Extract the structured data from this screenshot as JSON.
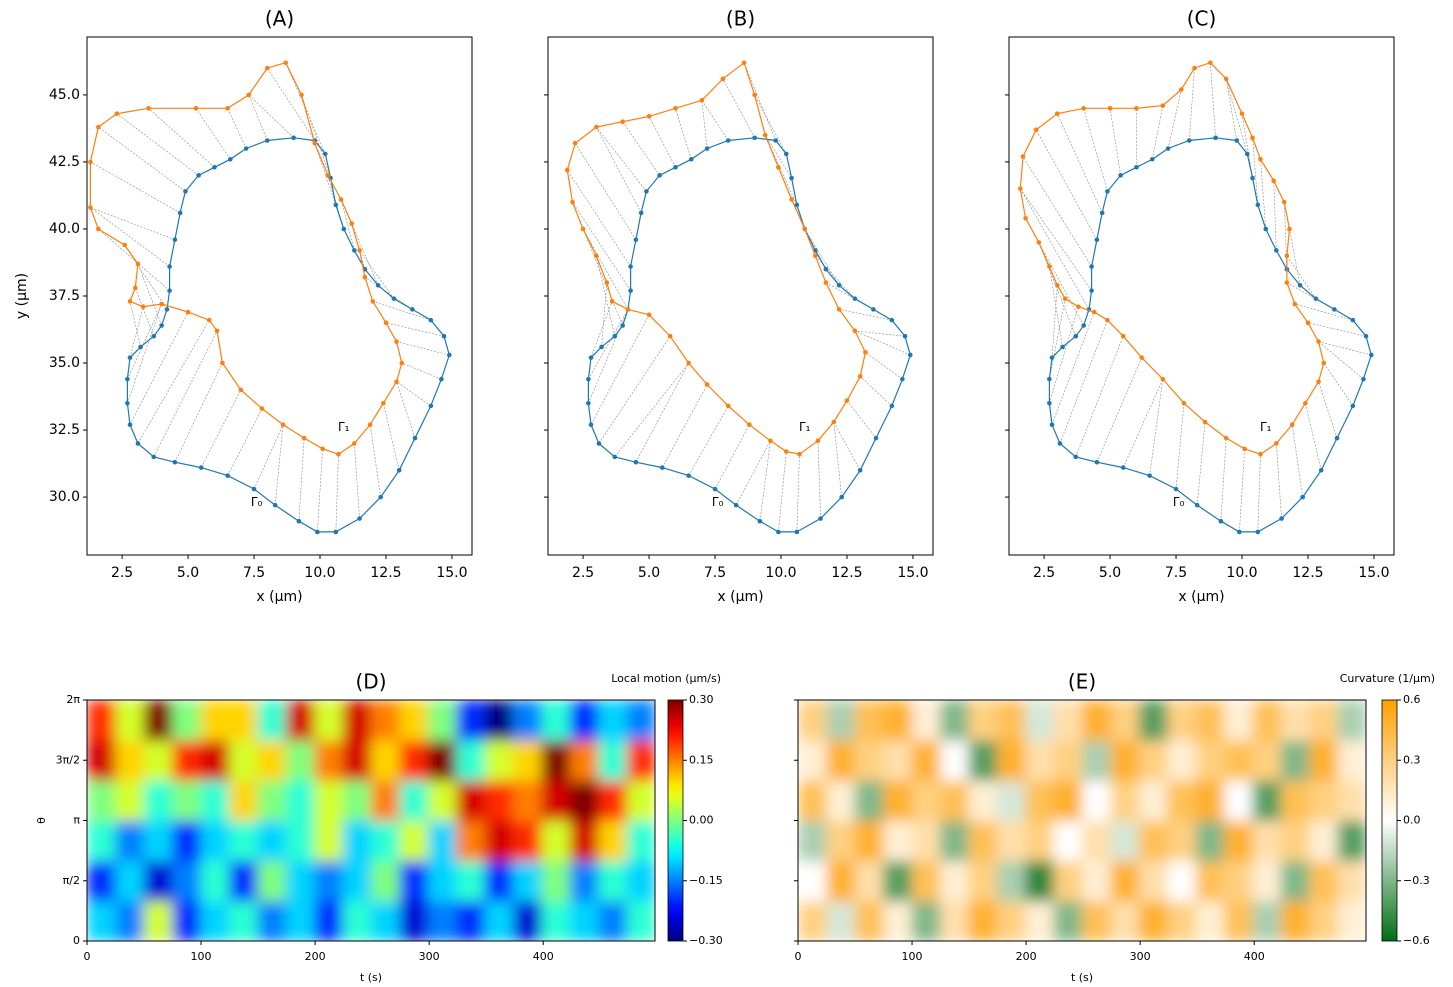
{
  "chart_data": [
    {
      "type": "line",
      "title": "(A)",
      "x_label": "x (μm)",
      "y_label": "y (μm)",
      "xlim": [
        1.17,
        15.76
      ],
      "ylim": [
        27.84,
        47.16
      ],
      "xticks": [
        {
          "value": 2.5,
          "label": "2.5"
        },
        {
          "value": 5,
          "label": "5.0"
        },
        {
          "value": 7.5,
          "label": "7.5"
        },
        {
          "value": 10,
          "label": "10.0"
        },
        {
          "value": 12.5,
          "label": "12.5"
        },
        {
          "value": 15,
          "label": "15.0"
        }
      ],
      "yticks": [
        {
          "value": 30,
          "label": "30.0"
        },
        32.5,
        {
          "value": 35,
          "label": "35.0"
        },
        37.5,
        {
          "value": 40,
          "label": "40.0"
        },
        42.5,
        {
          "value": 45,
          "label": "45.0"
        }
      ],
      "series": [
        {
          "name": "Γ₀",
          "color": "#1f77b4",
          "label_at": [
            7.6,
            29.8
          ],
          "x": [
            10.6,
            11.5,
            12.3,
            13.0,
            13.6,
            14.2,
            14.6,
            14.9,
            14.7,
            14.2,
            13.5,
            12.8,
            12.2,
            11.7,
            11.3,
            10.9,
            10.6,
            10.4,
            10.2,
            9.8,
            9.0,
            8.0,
            7.2,
            6.6,
            6.0,
            5.4,
            4.9,
            4.7,
            4.5,
            4.3,
            4.3,
            4.2,
            4.0,
            3.7,
            3.2,
            2.8,
            2.7,
            2.7,
            2.8,
            3.1,
            3.7,
            4.5,
            5.5,
            6.5,
            7.5,
            8.3,
            9.2,
            9.9
          ],
          "y": [
            28.7,
            29.2,
            30.0,
            31.0,
            32.2,
            33.4,
            34.4,
            35.3,
            36.0,
            36.6,
            37.0,
            37.4,
            37.9,
            38.5,
            39.2,
            40.0,
            40.9,
            41.9,
            42.8,
            43.3,
            43.4,
            43.3,
            43.0,
            42.6,
            42.3,
            42.0,
            41.4,
            40.6,
            39.6,
            38.6,
            37.7,
            37.0,
            36.4,
            36.0,
            35.6,
            35.2,
            34.4,
            33.5,
            32.7,
            32.0,
            31.5,
            31.3,
            31.1,
            30.8,
            30.3,
            29.7,
            29.1,
            28.7
          ]
        },
        {
          "name": "Γ₁",
          "color": "#ff7f0e",
          "label_at": [
            10.9,
            32.6
          ],
          "x": [
            10.7,
            11.3,
            11.9,
            12.4,
            12.9,
            13.1,
            12.9,
            12.5,
            12.0,
            11.7,
            11.5,
            11.2,
            10.8,
            10.3,
            9.8,
            9.3,
            8.7,
            8.0,
            7.3,
            6.5,
            5.3,
            3.5,
            2.3,
            1.6,
            1.3,
            1.3,
            1.6,
            2.6,
            3.1,
            3.0,
            2.8,
            3.3,
            4.0,
            5.0,
            5.8,
            6.1,
            6.3,
            7.0,
            7.8,
            8.6,
            9.4,
            10.1
          ],
          "y": [
            31.6,
            32.0,
            32.7,
            33.5,
            34.3,
            35.0,
            35.8,
            36.5,
            37.3,
            38.2,
            39.2,
            40.2,
            41.1,
            42.0,
            43.2,
            45.0,
            46.2,
            46.0,
            45.0,
            44.5,
            44.5,
            44.5,
            44.3,
            43.8,
            42.5,
            40.8,
            40.0,
            39.4,
            38.7,
            37.8,
            37.3,
            37.1,
            37.2,
            36.9,
            36.6,
            36.2,
            35.0,
            34.0,
            33.3,
            32.7,
            32.2,
            31.8
          ]
        }
      ]
    },
    {
      "type": "line",
      "title": "(B)",
      "x_label": "x (μm)",
      "ytick_labels": false,
      "xlim": [
        1.17,
        15.76
      ],
      "ylim": [
        27.84,
        47.16
      ],
      "xticks": [
        {
          "value": 2.5,
          "label": "2.5"
        },
        {
          "value": 5,
          "label": "5.0"
        },
        {
          "value": 7.5,
          "label": "7.5"
        },
        {
          "value": 10,
          "label": "10.0"
        },
        {
          "value": 12.5,
          "label": "12.5"
        },
        {
          "value": 15,
          "label": "15.0"
        }
      ],
      "yticks": [
        30,
        32.5,
        35,
        37.5,
        40,
        42.5,
        45
      ],
      "series": [
        {
          "name": "Γ₀",
          "color": "#1f77b4",
          "label_at": [
            7.6,
            29.8
          ],
          "x": [
            10.6,
            11.5,
            12.3,
            13.0,
            13.6,
            14.2,
            14.6,
            14.9,
            14.7,
            14.2,
            13.5,
            12.8,
            12.2,
            11.7,
            11.3,
            10.9,
            10.6,
            10.4,
            10.2,
            9.8,
            9.0,
            8.0,
            7.2,
            6.6,
            6.0,
            5.4,
            4.9,
            4.7,
            4.5,
            4.3,
            4.3,
            4.2,
            4.0,
            3.7,
            3.2,
            2.8,
            2.7,
            2.7,
            2.8,
            3.1,
            3.7,
            4.5,
            5.5,
            6.5,
            7.5,
            8.3,
            9.2,
            9.9
          ],
          "y": [
            28.7,
            29.2,
            30.0,
            31.0,
            32.2,
            33.4,
            34.4,
            35.3,
            36.0,
            36.6,
            37.0,
            37.4,
            37.9,
            38.5,
            39.2,
            40.0,
            40.9,
            41.9,
            42.8,
            43.3,
            43.4,
            43.3,
            43.0,
            42.6,
            42.3,
            42.0,
            41.4,
            40.6,
            39.6,
            38.6,
            37.7,
            37.0,
            36.4,
            36.0,
            35.6,
            35.2,
            34.4,
            33.5,
            32.7,
            32.0,
            31.5,
            31.3,
            31.1,
            30.8,
            30.3,
            29.7,
            29.1,
            28.7
          ]
        },
        {
          "name": "Γ₁",
          "color": "#ff7f0e",
          "label_at": [
            10.9,
            32.6
          ],
          "x": [
            10.7,
            11.4,
            12.0,
            12.5,
            13.0,
            13.2,
            12.8,
            12.2,
            11.7,
            11.3,
            10.9,
            10.4,
            9.9,
            9.4,
            9.0,
            8.6,
            7.8,
            7.0,
            6.0,
            5.0,
            4.0,
            3.0,
            2.2,
            1.9,
            2.1,
            2.5,
            3.0,
            3.4,
            3.6,
            4.2,
            5.0,
            5.8,
            6.5,
            7.2,
            8.0,
            8.8,
            9.6,
            10.2
          ],
          "y": [
            31.6,
            32.1,
            32.8,
            33.6,
            34.5,
            35.4,
            36.2,
            37.0,
            38.0,
            39.0,
            40.0,
            41.1,
            42.3,
            43.5,
            45.0,
            46.2,
            45.6,
            44.8,
            44.5,
            44.2,
            44.0,
            43.8,
            43.2,
            42.2,
            41.0,
            40.0,
            39.0,
            38.0,
            37.3,
            37.0,
            36.8,
            36.0,
            35.0,
            34.2,
            33.4,
            32.7,
            32.1,
            31.7
          ]
        }
      ]
    },
    {
      "type": "line",
      "title": "(C)",
      "x_label": "x (μm)",
      "ytick_labels": false,
      "xlim": [
        1.17,
        15.76
      ],
      "ylim": [
        27.84,
        47.16
      ],
      "xticks": [
        {
          "value": 2.5,
          "label": "2.5"
        },
        {
          "value": 5,
          "label": "5.0"
        },
        {
          "value": 7.5,
          "label": "7.5"
        },
        {
          "value": 10,
          "label": "10.0"
        },
        {
          "value": 12.5,
          "label": "12.5"
        },
        {
          "value": 15,
          "label": "15.0"
        }
      ],
      "yticks": [
        30,
        32.5,
        35,
        37.5,
        40,
        42.5,
        45
      ],
      "series": [
        {
          "name": "Γ₀",
          "color": "#1f77b4",
          "label_at": [
            7.6,
            29.8
          ],
          "x": [
            10.6,
            11.5,
            12.3,
            13.0,
            13.6,
            14.2,
            14.6,
            14.9,
            14.7,
            14.2,
            13.5,
            12.8,
            12.2,
            11.7,
            11.3,
            10.9,
            10.6,
            10.4,
            10.2,
            9.8,
            9.0,
            8.0,
            7.2,
            6.6,
            6.0,
            5.4,
            4.9,
            4.7,
            4.5,
            4.3,
            4.3,
            4.2,
            4.0,
            3.7,
            3.2,
            2.8,
            2.7,
            2.7,
            2.8,
            3.1,
            3.7,
            4.5,
            5.5,
            6.5,
            7.5,
            8.3,
            9.2,
            9.9
          ],
          "y": [
            28.7,
            29.2,
            30.0,
            31.0,
            32.2,
            33.4,
            34.4,
            35.3,
            36.0,
            36.6,
            37.0,
            37.4,
            37.9,
            38.5,
            39.2,
            40.0,
            40.9,
            41.9,
            42.8,
            43.3,
            43.4,
            43.3,
            43.0,
            42.6,
            42.3,
            42.0,
            41.4,
            40.6,
            39.6,
            38.6,
            37.7,
            37.0,
            36.4,
            36.0,
            35.6,
            35.2,
            34.4,
            33.5,
            32.7,
            32.0,
            31.5,
            31.3,
            31.1,
            30.8,
            30.3,
            29.7,
            29.1,
            28.7
          ]
        },
        {
          "name": "Γ₁",
          "color": "#ff7f0e",
          "label_at": [
            10.9,
            32.6
          ],
          "x": [
            10.7,
            11.3,
            11.9,
            12.4,
            12.9,
            13.1,
            12.9,
            12.5,
            12.0,
            11.7,
            11.7,
            11.8,
            11.6,
            11.2,
            10.7,
            10.4,
            10.0,
            9.4,
            8.8,
            8.2,
            7.7,
            7.0,
            6.0,
            5.0,
            4.0,
            3.0,
            2.2,
            1.7,
            1.6,
            1.8,
            2.3,
            2.7,
            3.0,
            3.3,
            3.8,
            4.4,
            4.9,
            5.5,
            6.2,
            7.0,
            7.8,
            8.6,
            9.4,
            10.1
          ],
          "y": [
            31.6,
            32.0,
            32.7,
            33.5,
            34.3,
            35.0,
            35.8,
            36.5,
            37.2,
            38.0,
            39.0,
            40.0,
            41.0,
            41.8,
            42.6,
            43.4,
            44.3,
            45.6,
            46.2,
            46.0,
            45.2,
            44.6,
            44.5,
            44.5,
            44.5,
            44.3,
            43.7,
            42.7,
            41.5,
            40.4,
            39.5,
            38.6,
            37.9,
            37.4,
            37.1,
            36.9,
            36.6,
            36.0,
            35.2,
            34.4,
            33.5,
            32.8,
            32.2,
            31.8
          ]
        }
      ]
    },
    {
      "type": "heatmap",
      "title": "(D)",
      "x_label": "t (s)",
      "y_label": "θ",
      "colormap": "jet",
      "xlim": [
        0,
        498
      ],
      "ylim": [
        0,
        6.2832
      ],
      "xticks": [
        0,
        100,
        200,
        300,
        400
      ],
      "yticks": [
        0,
        {
          "value": 1.5708,
          "label": "π/2"
        },
        {
          "value": 3.1416,
          "label": "π"
        },
        {
          "value": 4.7124,
          "label": "3π/2"
        },
        {
          "value": 6.2832,
          "label": "2π"
        }
      ],
      "z": [
        [
          -0.1,
          -0.15,
          0.05,
          -0.2,
          -0.1,
          -0.05,
          -0.15,
          -0.1,
          -0.2,
          -0.05,
          -0.1,
          -0.25,
          -0.15,
          -0.2,
          -0.1,
          -0.25,
          -0.05,
          -0.1,
          -0.15,
          -0.05
        ],
        [
          -0.2,
          -0.1,
          -0.25,
          -0.15,
          -0.05,
          -0.2,
          0.0,
          -0.1,
          -0.15,
          -0.1,
          0.0,
          -0.2,
          -0.1,
          -0.05,
          -0.2,
          -0.1,
          0.0,
          -0.15,
          -0.05,
          -0.1
        ],
        [
          -0.05,
          -0.15,
          -0.1,
          -0.2,
          -0.1,
          -0.05,
          -0.1,
          -0.05,
          0.05,
          -0.1,
          -0.05,
          0.05,
          -0.1,
          0.15,
          0.25,
          0.2,
          0.05,
          0.25,
          0.1,
          -0.05
        ],
        [
          0.0,
          0.05,
          -0.05,
          0.0,
          -0.05,
          0.1,
          0.0,
          -0.05,
          0.05,
          0.0,
          0.15,
          -0.05,
          0.05,
          0.25,
          0.2,
          0.15,
          0.25,
          0.3,
          0.2,
          0.05
        ],
        [
          0.25,
          0.1,
          0.05,
          0.2,
          0.25,
          0.05,
          0.1,
          0.0,
          0.15,
          0.25,
          0.1,
          0.2,
          0.3,
          -0.05,
          0.05,
          0.1,
          0.3,
          0.15,
          -0.05,
          0.2
        ],
        [
          0.2,
          0.05,
          0.3,
          0.0,
          0.1,
          0.1,
          -0.05,
          0.25,
          0.05,
          0.25,
          0.15,
          0.1,
          0.0,
          -0.2,
          -0.3,
          -0.15,
          -0.05,
          -0.2,
          -0.1,
          -0.15
        ]
      ],
      "colorbar": {
        "label": "Local motion (μm/s)",
        "lim": [
          -0.3,
          0.3
        ],
        "ticks": [
          {
            "value": 0.3,
            "label": "0.30"
          },
          {
            "value": 0.15,
            "label": "0.15"
          },
          {
            "value": 0,
            "label": "0.00"
          },
          {
            "value": -0.15,
            "label": "−0.15"
          },
          {
            "value": -0.3,
            "label": "−0.30"
          }
        ]
      }
    },
    {
      "type": "heatmap",
      "title": "(E)",
      "x_label": "t (s)",
      "ytick_labels": false,
      "colormap": "green-orange",
      "xlim": [
        0,
        498
      ],
      "ylim": [
        0,
        6.2832
      ],
      "xticks": [
        0,
        100,
        200,
        300,
        400
      ],
      "yticks": [
        0,
        1.5708,
        3.1416,
        4.7124,
        6.2832
      ],
      "z": [
        [
          0.3,
          -0.1,
          0.4,
          0.1,
          -0.3,
          0.2,
          0.5,
          0.3,
          0.1,
          -0.3,
          0.4,
          0.2,
          0.5,
          0.3,
          0.1,
          0.4,
          -0.2,
          0.5,
          0.3,
          0.1
        ],
        [
          0.0,
          0.5,
          0.2,
          -0.4,
          0.4,
          0.1,
          0.3,
          -0.2,
          -0.5,
          0.3,
          0.1,
          0.5,
          0.2,
          0.0,
          0.4,
          0.3,
          0.1,
          -0.3,
          0.4,
          0.2
        ],
        [
          -0.2,
          0.3,
          0.5,
          0.1,
          0.2,
          -0.3,
          0.4,
          0.2,
          0.3,
          0.0,
          0.2,
          -0.1,
          0.4,
          0.3,
          -0.3,
          0.5,
          0.2,
          0.3,
          0.1,
          -0.4
        ],
        [
          0.4,
          0.1,
          -0.3,
          0.5,
          0.3,
          0.4,
          0.1,
          -0.1,
          0.4,
          0.5,
          0.0,
          0.3,
          0.1,
          0.4,
          0.5,
          0.0,
          -0.4,
          0.4,
          0.3,
          0.2
        ],
        [
          0.1,
          0.5,
          0.3,
          0.2,
          0.5,
          0.0,
          -0.4,
          0.5,
          0.2,
          0.3,
          -0.2,
          0.5,
          0.3,
          0.1,
          0.3,
          0.4,
          0.3,
          -0.3,
          0.5,
          0.1
        ],
        [
          0.3,
          -0.2,
          0.4,
          0.5,
          0.1,
          -0.3,
          0.3,
          0.4,
          -0.1,
          0.2,
          0.5,
          0.3,
          -0.4,
          0.3,
          0.4,
          0.1,
          0.4,
          0.2,
          0.3,
          -0.2
        ]
      ],
      "colorbar": {
        "label": "Curvature (1/μm)",
        "lim": [
          -0.6,
          0.6
        ],
        "ticks": [
          {
            "value": 0.6,
            "label": "0.6"
          },
          {
            "value": 0.3,
            "label": "0.3"
          },
          {
            "value": 0,
            "label": "0.0"
          },
          {
            "value": -0.3,
            "label": "−0.3"
          },
          {
            "value": -0.6,
            "label": "−0.6"
          }
        ]
      }
    }
  ]
}
